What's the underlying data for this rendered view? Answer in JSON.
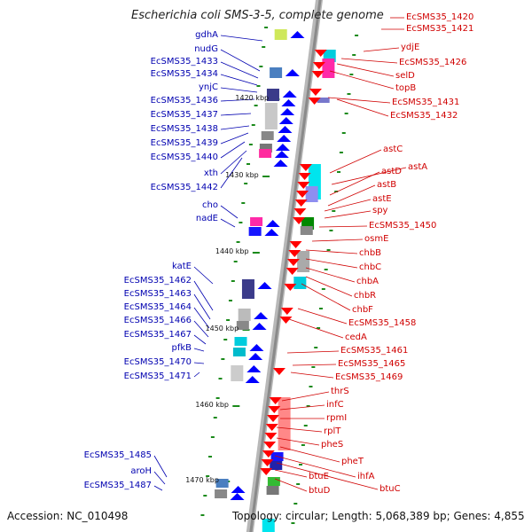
{
  "title": "Escherichia coli SMS-3-5, complete genome",
  "footer": {
    "accession": "Accession: NC_010498",
    "topology": "Topology: circular; Length: 5,068,389 bp; Genes: 4,855"
  },
  "colors": {
    "left_label": "#0000b0",
    "right_label": "#d00000",
    "backbone": "#8a8a8a",
    "tick": "#1a8a1a",
    "left_arrow": "#0000ff",
    "right_arrow": "#ff0000"
  },
  "kbp_ticks": [
    "1420 kbp",
    "1430 kbp",
    "1440 kbp",
    "1450 kbp",
    "1460 kbp",
    "1470 kbp"
  ],
  "left_genes": [
    "gdhA",
    "nudG",
    "EcSMS35_1433",
    "EcSMS35_1434",
    "ynjC",
    "EcSMS35_1436",
    "EcSMS35_1437",
    "EcSMS35_1438",
    "EcSMS35_1439",
    "EcSMS35_1440",
    "xth",
    "EcSMS35_1442",
    "cho",
    "nadE",
    "katE",
    "EcSMS35_1462",
    "EcSMS35_1463",
    "EcSMS35_1464",
    "EcSMS35_1466",
    "EcSMS35_1467",
    "pfkB",
    "EcSMS35_1470",
    "EcSMS35_1471",
    "EcSMS35_1485",
    "aroH",
    "EcSMS35_1487"
  ],
  "right_genes": [
    "EcSMS35_1420",
    "EcSMS35_1421",
    "ydjE",
    "EcSMS35_1426",
    "selD",
    "topB",
    "EcSMS35_1431",
    "EcSMS35_1432",
    "astC",
    "astA",
    "astD",
    "astB",
    "astE",
    "spy",
    "EcSMS35_1450",
    "osmE",
    "chbB",
    "chbC",
    "chbA",
    "chbR",
    "chbF",
    "EcSMS35_1458",
    "cedA",
    "EcSMS35_1461",
    "EcSMS35_1465",
    "EcSMS35_1469",
    "thrS",
    "infC",
    "rpmI",
    "rplT",
    "pheS",
    "pheT",
    "ihfA",
    "btuC",
    "btuE",
    "btuD"
  ]
}
